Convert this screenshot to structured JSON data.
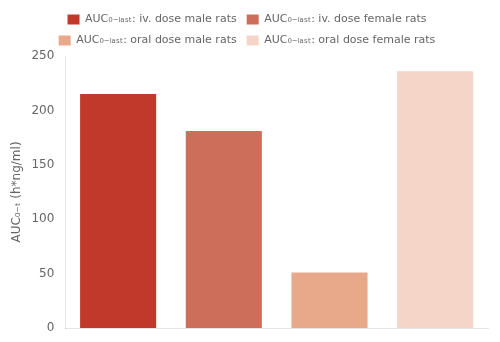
{
  "chart_data": {
    "type": "bar",
    "categories": [
      null,
      null,
      null,
      null
    ],
    "series": [
      {
        "name": "AUC₀₋ₗₐₛₜ: iv. dose male rats",
        "color": "#c0392b",
        "values": [
          215,
          null,
          null,
          null
        ]
      },
      {
        "name": "AUC₀₋ₗₐₛₜ: iv. dose female rats",
        "color": "#cd6e5a",
        "values": [
          null,
          181,
          null,
          null
        ]
      },
      {
        "name": "AUC₀₋ₗₐₛₜ: oral dose male rats",
        "color": "#e8a98a",
        "values": [
          null,
          null,
          51,
          null
        ]
      },
      {
        "name": "AUC₀₋ₗₐₛₜ: oral dose female rats",
        "color": "#f5d5c8",
        "values": [
          null,
          null,
          null,
          236
        ]
      }
    ],
    "ylabel": "AUC₀₋ₜ (h*ng/ml)",
    "ylim": [
      0,
      250
    ],
    "yticks": [
      0,
      50,
      100,
      150,
      200,
      250
    ],
    "grid": false,
    "legend": "top",
    "tick_labels": "y"
  }
}
